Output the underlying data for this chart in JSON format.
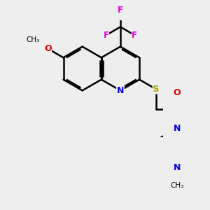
{
  "bg_color": "#eeeeee",
  "atom_colors": {
    "C": "#000000",
    "N": "#0000ee",
    "O": "#dd0000",
    "S": "#aaaa00",
    "F": "#dd00dd"
  },
  "bond_color": "#000000",
  "bond_width": 1.8,
  "figsize": [
    3.0,
    3.0
  ],
  "dpi": 100,
  "L": 0.32
}
